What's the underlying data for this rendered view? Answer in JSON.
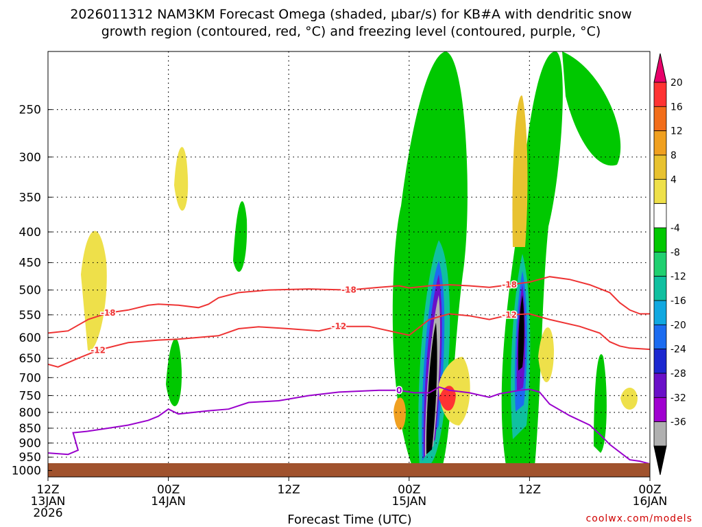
{
  "page": {
    "title_line1": "2026011312 NAM3KM Forecast Omega (shaded, µbar/s) for KB#A with dendritic snow",
    "title_line2": "growth region (contoured, red, °C) and freezing level (contoured, purple, °C)",
    "credit": "coolwx.com/models"
  },
  "chart_data": {
    "type": "heatmap",
    "title": "2026011312 NAM3KM Forecast Omega (shaded, µbar/s) for KB#A with dendritic snow growth region (contoured, red, °C) and freezing level (contoured, purple, °C)",
    "xlabel": "Forecast Time (UTC)",
    "ylabel": "",
    "x_range_hours": [
      0,
      60
    ],
    "y_range_hpa": [
      200,
      1025
    ],
    "y_scale": "log-pressure",
    "x_ticks": [
      {
        "hour": 0,
        "lines": [
          "12Z",
          "13JAN",
          "2026"
        ]
      },
      {
        "hour": 12,
        "lines": [
          "00Z",
          "14JAN"
        ]
      },
      {
        "hour": 24,
        "lines": [
          "12Z"
        ]
      },
      {
        "hour": 36,
        "lines": [
          "00Z",
          "15JAN"
        ]
      },
      {
        "hour": 48,
        "lines": [
          "12Z"
        ]
      },
      {
        "hour": 60,
        "lines": [
          "00Z",
          "16JAN"
        ]
      }
    ],
    "y_ticks": [
      250,
      300,
      350,
      400,
      450,
      500,
      550,
      600,
      650,
      700,
      750,
      800,
      850,
      900,
      950,
      1000
    ],
    "grid": true,
    "colorbar": {
      "placement": "right",
      "labels": [
        "20",
        "16",
        "12",
        "8",
        "4",
        "-4",
        "-8",
        "-12",
        "-16",
        "-20",
        "-24",
        "-28",
        "-32",
        "-36"
      ],
      "colors": [
        "#e8006a",
        "#ff3333",
        "#f26d1a",
        "#f0a020",
        "#e8c230",
        "#eee04a",
        "#ffffff",
        "#00c800",
        "#20d070",
        "#10c0a0",
        "#10a8e0",
        "#1c6cf0",
        "#1c28d0",
        "#6a10c8",
        "#a000d0",
        "#b0b0b0",
        "#000000"
      ]
    },
    "contours": [
      {
        "name": "-18",
        "color": "#ee3333",
        "label_hours": [
          6,
          29,
          47
        ],
        "points": [
          [
            0,
            590
          ],
          [
            2,
            585
          ],
          [
            4,
            560
          ],
          [
            6,
            546
          ],
          [
            8,
            540
          ],
          [
            10,
            530
          ],
          [
            11,
            528
          ],
          [
            13,
            530
          ],
          [
            15,
            535
          ],
          [
            16,
            528
          ],
          [
            17,
            515
          ],
          [
            19,
            505
          ],
          [
            22,
            500
          ],
          [
            26,
            498
          ],
          [
            30,
            500
          ],
          [
            33,
            495
          ],
          [
            35,
            492
          ],
          [
            36,
            496
          ],
          [
            38,
            492
          ],
          [
            40,
            490
          ],
          [
            42,
            492
          ],
          [
            44,
            495
          ],
          [
            46,
            490
          ],
          [
            48,
            485
          ],
          [
            50,
            475
          ],
          [
            52,
            480
          ],
          [
            54,
            490
          ],
          [
            56,
            505
          ],
          [
            57,
            525
          ],
          [
            58,
            540
          ],
          [
            59,
            548
          ],
          [
            60,
            548
          ]
        ]
      },
      {
        "name": "-12",
        "color": "#ee3333",
        "label_hours": [
          6,
          30,
          47
        ],
        "points": [
          [
            0,
            665
          ],
          [
            1,
            672
          ],
          [
            3,
            650
          ],
          [
            5,
            630
          ],
          [
            8,
            612
          ],
          [
            11,
            606
          ],
          [
            13,
            604
          ],
          [
            15,
            600
          ],
          [
            17,
            596
          ],
          [
            19,
            580
          ],
          [
            21,
            576
          ],
          [
            24,
            580
          ],
          [
            27,
            585
          ],
          [
            29,
            575
          ],
          [
            32,
            575
          ],
          [
            35,
            590
          ],
          [
            36,
            595
          ],
          [
            38,
            560
          ],
          [
            40,
            548
          ],
          [
            42,
            552
          ],
          [
            44,
            560
          ],
          [
            46,
            550
          ],
          [
            48,
            548
          ],
          [
            50,
            560
          ],
          [
            53,
            575
          ],
          [
            55,
            590
          ],
          [
            56,
            610
          ],
          [
            57,
            620
          ],
          [
            58,
            625
          ],
          [
            60,
            628
          ]
        ]
      },
      {
        "name": "0",
        "color": "#9900cc",
        "label_hours": [
          35.5
        ],
        "points": [
          [
            0,
            935
          ],
          [
            2,
            940
          ],
          [
            3,
            925
          ],
          [
            2.5,
            865
          ],
          [
            4,
            860
          ],
          [
            6,
            850
          ],
          [
            8,
            840
          ],
          [
            10,
            825
          ],
          [
            11,
            812
          ],
          [
            12,
            790
          ],
          [
            13,
            805
          ],
          [
            16,
            795
          ],
          [
            18,
            790
          ],
          [
            20,
            770
          ],
          [
            23,
            765
          ],
          [
            26,
            750
          ],
          [
            29,
            740
          ],
          [
            33,
            735
          ],
          [
            35,
            735
          ],
          [
            36.5,
            742
          ],
          [
            38,
            742
          ],
          [
            39,
            726
          ],
          [
            40,
            735
          ],
          [
            42,
            742
          ],
          [
            44,
            755
          ],
          [
            45,
            745
          ],
          [
            46,
            740
          ],
          [
            47,
            735
          ],
          [
            48,
            732
          ],
          [
            49,
            740
          ],
          [
            50,
            775
          ],
          [
            52,
            810
          ],
          [
            54,
            840
          ],
          [
            55,
            870
          ],
          [
            56,
            905
          ],
          [
            58,
            960
          ],
          [
            59,
            965
          ],
          [
            60,
            975
          ]
        ]
      }
    ],
    "terrain_color": "#a0522d"
  }
}
